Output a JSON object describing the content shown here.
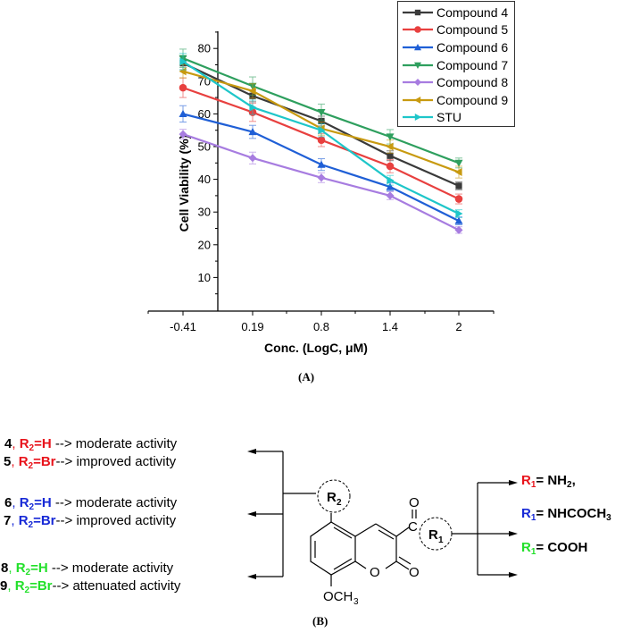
{
  "panel_a_label": "(A)",
  "panel_b_label": "(B)",
  "chart_data": {
    "type": "line",
    "title": "",
    "xlabel": "Conc. (LogC, μM)",
    "ylabel": "Cell Viability (%)",
    "categories": [
      "-0.41",
      "0.19",
      "0.8",
      "1.4",
      "2"
    ],
    "yticks": [
      10,
      20,
      30,
      40,
      50,
      60,
      70,
      80
    ],
    "ylim": [
      0,
      85
    ],
    "grid": false,
    "legend_position": "top-right",
    "series": [
      {
        "name": "Compound 4",
        "color": "#3a3a3a",
        "marker": "square",
        "values": [
          75.5,
          65.5,
          57.8,
          47.2,
          38.0
        ],
        "errors": [
          2.0,
          1.8,
          1.5,
          1.5,
          1.2
        ]
      },
      {
        "name": "Compound 5",
        "color": "#e8403f",
        "marker": "circle",
        "values": [
          68.0,
          60.5,
          52.0,
          44.0,
          34.0
        ],
        "errors": [
          3.0,
          2.8,
          2.0,
          2.0,
          1.5
        ]
      },
      {
        "name": "Compound 6",
        "color": "#1f5fd6",
        "marker": "triangle-up",
        "values": [
          60.0,
          54.5,
          44.5,
          37.7,
          27.3
        ],
        "errors": [
          2.5,
          2.0,
          1.8,
          1.2,
          1.2
        ]
      },
      {
        "name": "Compound 7",
        "color": "#2e9f5e",
        "marker": "triangle-down",
        "values": [
          77.0,
          68.5,
          60.5,
          53.0,
          45.0
        ],
        "errors": [
          2.8,
          2.8,
          2.5,
          2.2,
          1.5
        ]
      },
      {
        "name": "Compound 8",
        "color": "#a77ce0",
        "marker": "diamond",
        "values": [
          53.8,
          46.5,
          40.5,
          35.0,
          24.5
        ],
        "errors": [
          1.5,
          1.8,
          1.5,
          1.2,
          1.0
        ]
      },
      {
        "name": "Compound 9",
        "color": "#c89a10",
        "marker": "triangle-left",
        "values": [
          73.0,
          67.0,
          55.5,
          50.0,
          42.2
        ],
        "errors": [
          2.0,
          2.2,
          2.0,
          2.0,
          1.8
        ]
      },
      {
        "name": "STU",
        "color": "#1ec6c9",
        "marker": "triangle-right",
        "values": [
          76.0,
          62.0,
          55.0,
          39.7,
          29.5
        ],
        "errors": [
          2.5,
          2.2,
          2.0,
          1.5,
          1.2
        ]
      }
    ]
  },
  "sar": {
    "r2_groups": [
      {
        "lines": [
          {
            "num": "4",
            "r_label": "R",
            "r_sub": "2",
            "r_value": "=H",
            "color": "red",
            "arrow": " --> ",
            "activity": "moderate activity"
          },
          {
            "num": "5",
            "r_label": "R",
            "r_sub": "2",
            "r_value": "=Br",
            "color": "red",
            "arrow": "--> ",
            "activity": "improved activity"
          }
        ]
      },
      {
        "lines": [
          {
            "num": "6",
            "r_label": "R",
            "r_sub": "2",
            "r_value": "=H",
            "color": "blue",
            "arrow": " --> ",
            "activity": "moderate activity"
          },
          {
            "num": "7",
            "r_label": "R",
            "r_sub": "2",
            "r_value": "=Br",
            "color": "blue",
            "arrow": "--> ",
            "activity": "improved activity"
          }
        ]
      },
      {
        "lines": [
          {
            "num": "8",
            "r_label": "R",
            "r_sub": "2",
            "r_value": "=H",
            "color": "green",
            "arrow": " --> ",
            "activity": "moderate activity"
          },
          {
            "num": "9",
            "r_label": "R",
            "r_sub": "2",
            "r_value": "=Br",
            "color": "green",
            "arrow": "--> ",
            "activity": "attenuated activity"
          }
        ]
      }
    ],
    "r1_options": [
      {
        "r_label": "R",
        "r_sub": "1",
        "eq": "= ",
        "value": "NH",
        "value_sub": "2",
        "suffix": ",",
        "color": "red"
      },
      {
        "r_label": "R",
        "r_sub": "1",
        "eq": "= ",
        "value": "NHCOCH",
        "value_sub": "3",
        "suffix": "",
        "color": "blue"
      },
      {
        "r_label": "R",
        "r_sub": "1",
        "eq": "= ",
        "value": "COOH",
        "value_sub": "",
        "suffix": "",
        "color": "green"
      }
    ],
    "structure": {
      "r2_label": "R",
      "r2_sub": "2",
      "r1_label": "R",
      "r1_sub": "1",
      "carbonyl_o": "O",
      "carbonyl_c": "C",
      "ring_o": "O",
      "lactone_o": "O",
      "methoxy": "OCH",
      "methoxy_sub": "3"
    }
  }
}
